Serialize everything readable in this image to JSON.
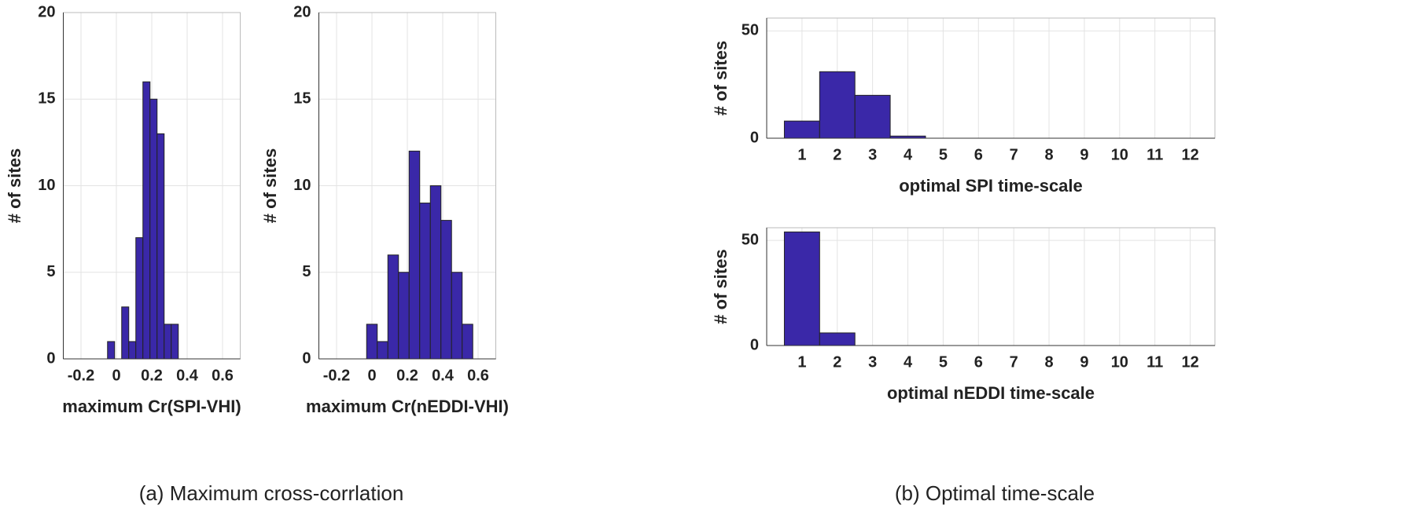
{
  "chart_data": [
    {
      "type": "histogram",
      "xlabel": "maximum Cr(SPI-VHI)",
      "ylabel": "# of sites",
      "bins": [
        -0.05,
        -0.01,
        0.03,
        0.07,
        0.11,
        0.15,
        0.19,
        0.23,
        0.27,
        0.31,
        0.35
      ],
      "values": [
        1,
        0,
        3,
        1,
        7,
        16,
        15,
        13,
        2,
        2
      ],
      "color": "#3a28a8",
      "xlim": [
        -0.3,
        0.7
      ],
      "xticks": [
        -0.2,
        0,
        0.2,
        0.4,
        0.6
      ],
      "ylim": [
        0,
        20
      ],
      "yticks": [
        0,
        5,
        10,
        15,
        20
      ],
      "grid": true
    },
    {
      "type": "histogram",
      "xlabel": "maximum Cr(nEDDI-VHI)",
      "ylabel": "# of sites",
      "bins": [
        -0.03,
        0.03,
        0.09,
        0.15,
        0.21,
        0.27,
        0.33,
        0.39,
        0.45,
        0.51,
        0.57
      ],
      "values": [
        2,
        1,
        6,
        5,
        12,
        9,
        10,
        8,
        5,
        2
      ],
      "color": "#3a28a8",
      "xlim": [
        -0.3,
        0.7
      ],
      "xticks": [
        -0.2,
        0,
        0.2,
        0.4,
        0.6
      ],
      "ylim": [
        0,
        20
      ],
      "yticks": [
        0,
        5,
        10,
        15,
        20
      ],
      "grid": true
    },
    {
      "type": "bar",
      "xlabel": "optimal SPI time-scale",
      "ylabel": "# of sites",
      "categories": [
        1,
        2,
        3,
        4,
        5,
        6,
        7,
        8,
        9,
        10,
        11,
        12
      ],
      "values": [
        8,
        31,
        20,
        1,
        0,
        0,
        0,
        0,
        0,
        0,
        0,
        0
      ],
      "color": "#3a28a8",
      "ylim": [
        0,
        56
      ],
      "yticks": [
        0,
        50
      ],
      "grid": true
    },
    {
      "type": "bar",
      "xlabel": "optimal nEDDI time-scale",
      "ylabel": "# of sites",
      "categories": [
        1,
        2,
        3,
        4,
        5,
        6,
        7,
        8,
        9,
        10,
        11,
        12
      ],
      "values": [
        54,
        6,
        0,
        0,
        0,
        0,
        0,
        0,
        0,
        0,
        0,
        0
      ],
      "color": "#3a28a8",
      "ylim": [
        0,
        56
      ],
      "yticks": [
        0,
        50
      ],
      "grid": true
    }
  ],
  "captions": [
    "(a) Maximum cross-corrlation",
    "(b) Optimal time-scale"
  ]
}
